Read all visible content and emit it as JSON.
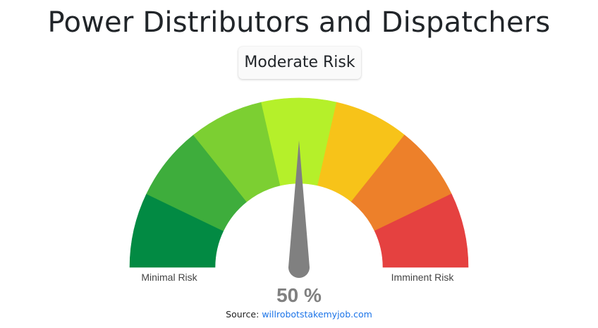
{
  "header": {
    "title": "Power Distributors and Dispatchers",
    "risk_label": "Moderate Risk"
  },
  "chart_data": {
    "type": "gauge",
    "value": 50,
    "value_display": "50 %",
    "min": 0,
    "max": 100,
    "min_label": "Minimal Risk",
    "max_label": "Imminent Risk",
    "band_colors": [
      "#028a43",
      "#3ead3c",
      "#7ccf32",
      "#b5f02a",
      "#f7c319",
      "#ed802a",
      "#e54140"
    ],
    "needle_color": "#808080"
  },
  "footer": {
    "source_prefix": "Source:",
    "source_link": "willrobotstakemyjob.com"
  }
}
